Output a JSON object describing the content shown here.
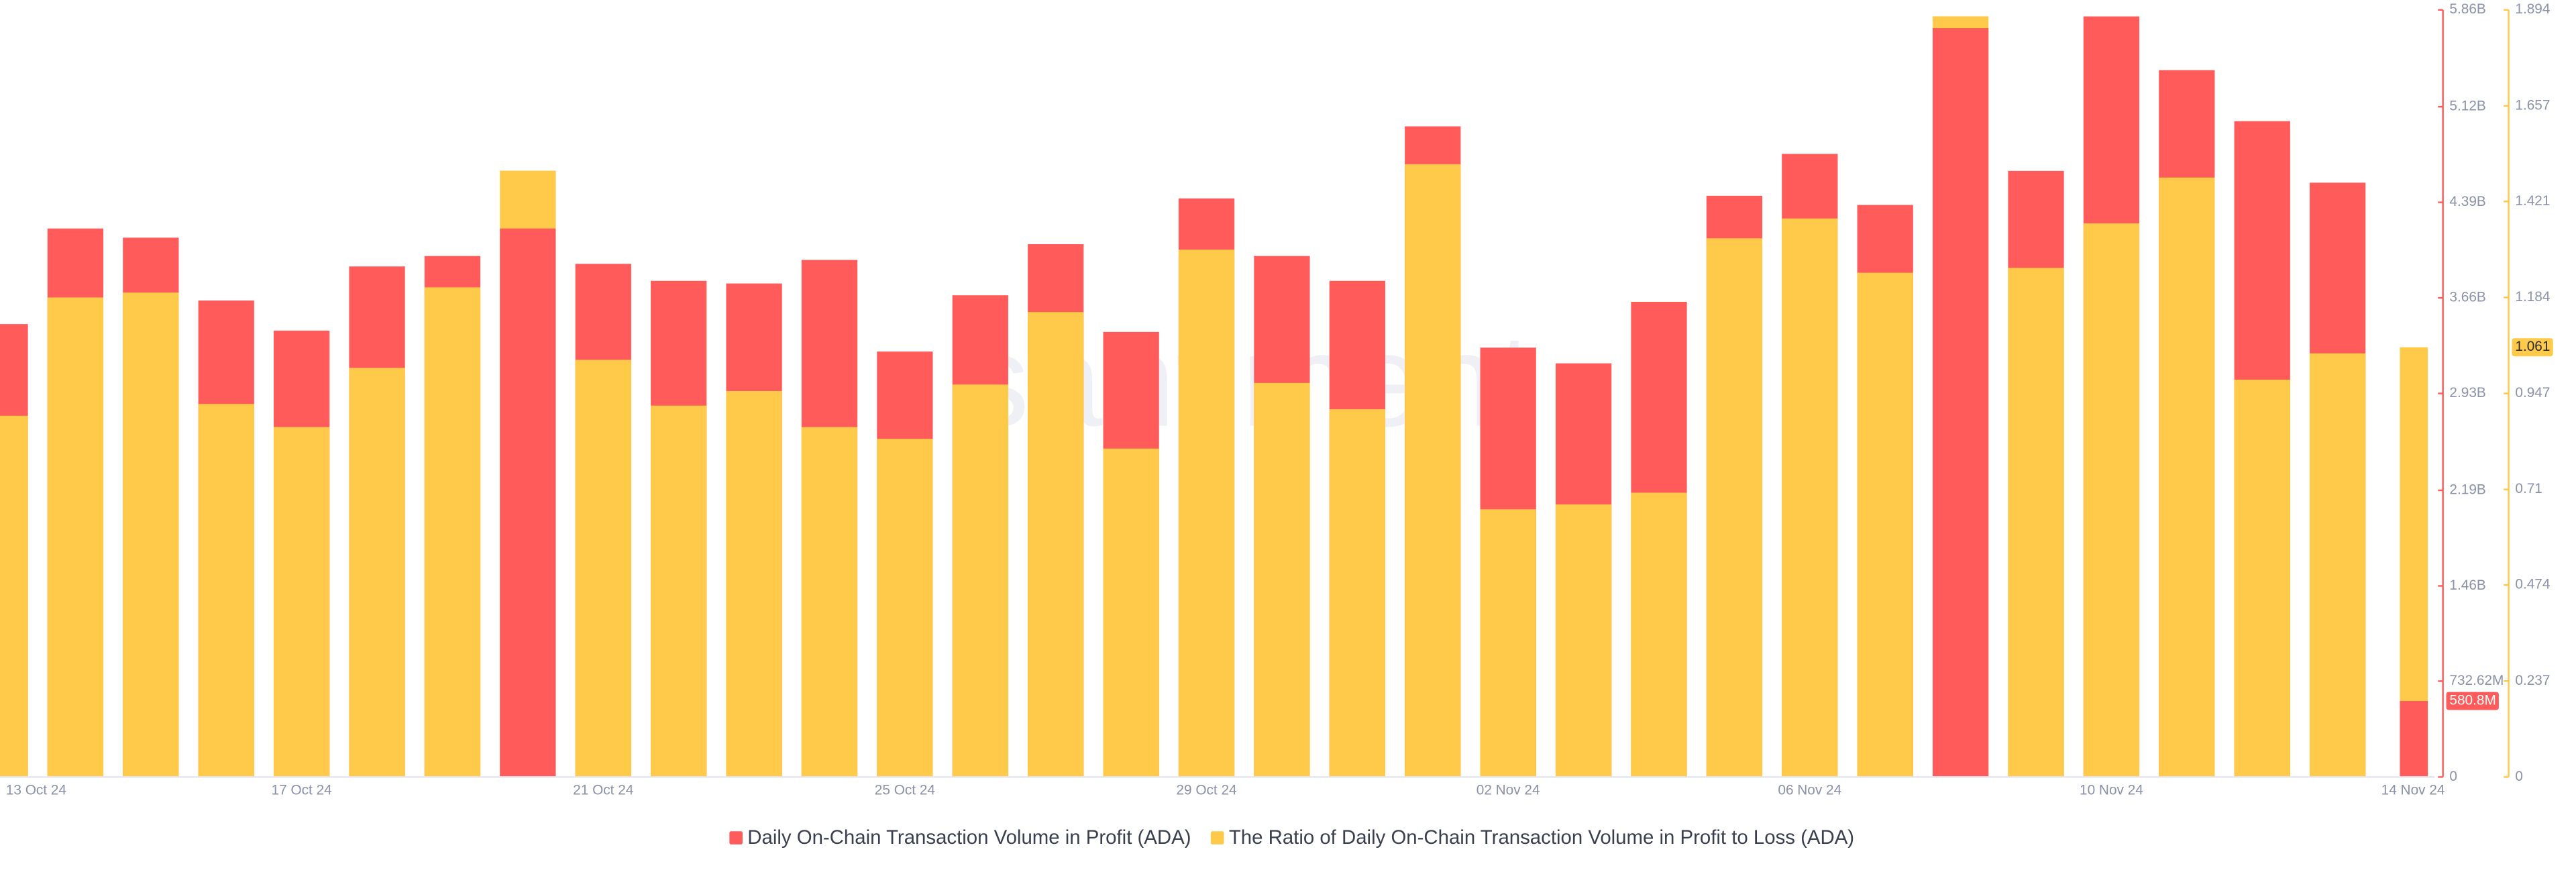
{
  "chart_data": {
    "type": "bar",
    "watermark": "santiment",
    "categories": [
      "13 Oct 24",
      null,
      null,
      null,
      "17 Oct 24",
      null,
      null,
      null,
      "21 Oct 24",
      null,
      null,
      null,
      "25 Oct 24",
      null,
      null,
      null,
      "29 Oct 24",
      null,
      null,
      null,
      "02 Nov 24",
      null,
      null,
      null,
      "06 Nov 24",
      null,
      null,
      null,
      "10 Nov 24",
      null,
      null,
      null,
      "14 Nov 24"
    ],
    "series": [
      {
        "name": "Daily On-Chain Transaction Volume in Profit (ADA)",
        "color": "#ff5b5b",
        "axis": "y",
        "values": [
          3460000000,
          4190000000,
          4120000000,
          3640000000,
          3410000000,
          3900000000,
          3980000000,
          4190000000,
          3920000000,
          3790000000,
          3770000000,
          3950000000,
          3250000000,
          3680000000,
          4070000000,
          3400000000,
          4420000000,
          3980000000,
          3790000000,
          4970000000,
          3280000000,
          3160000000,
          3630000000,
          4440000000,
          4760000000,
          4370000000,
          5720000000,
          4630000000,
          5810000000,
          5400000000,
          5010000000,
          4540000000,
          580800000
        ],
        "value_labels": [
          null,
          null,
          null,
          null,
          null,
          null,
          null,
          null,
          null,
          null,
          null,
          null,
          null,
          null,
          null,
          null,
          null,
          null,
          null,
          null,
          null,
          null,
          null,
          null,
          null,
          null,
          null,
          null,
          null,
          null,
          null,
          null,
          "580.8M"
        ]
      },
      {
        "name": "The Ratio of Daily On-Chain Transaction Volume in Profit to Loss (ADA)",
        "color": "#ffc94a",
        "axis": "y2",
        "values": [
          0.892,
          1.184,
          1.196,
          0.921,
          0.864,
          1.01,
          1.209,
          1.497,
          1.03,
          0.917,
          0.953,
          0.864,
          0.835,
          0.969,
          1.148,
          0.811,
          1.302,
          0.973,
          0.908,
          1.513,
          0.661,
          0.673,
          0.702,
          1.33,
          1.379,
          1.245,
          1.878,
          1.257,
          1.367,
          1.48,
          0.981,
          1.046,
          1.061
        ],
        "value_labels": [
          null,
          null,
          null,
          null,
          null,
          null,
          null,
          null,
          null,
          null,
          null,
          null,
          null,
          null,
          null,
          null,
          null,
          null,
          null,
          null,
          null,
          null,
          null,
          null,
          null,
          null,
          null,
          null,
          null,
          null,
          null,
          null,
          "1.061"
        ]
      }
    ],
    "ylim": [
      0,
      5860000000
    ],
    "yticks": [
      0,
      {
        "value": 732620000,
        "label": "732.62M"
      },
      {
        "value": 1460000000,
        "label": "1.46B"
      },
      {
        "value": 2190000000,
        "label": "2.19B"
      },
      {
        "value": 2930000000,
        "label": "2.93B"
      },
      {
        "value": 3660000000,
        "label": "3.66B"
      },
      {
        "value": 4390000000,
        "label": "4.39B"
      },
      {
        "value": 5120000000,
        "label": "5.12B"
      },
      {
        "value": 5860000000,
        "label": "5.86B"
      }
    ],
    "y2lim": [
      0,
      1.894
    ],
    "y2ticks": [
      0,
      0.237,
      0.474,
      0.71,
      0.947,
      1.184,
      1.421,
      1.657,
      1.894
    ],
    "legend": "bottom"
  }
}
